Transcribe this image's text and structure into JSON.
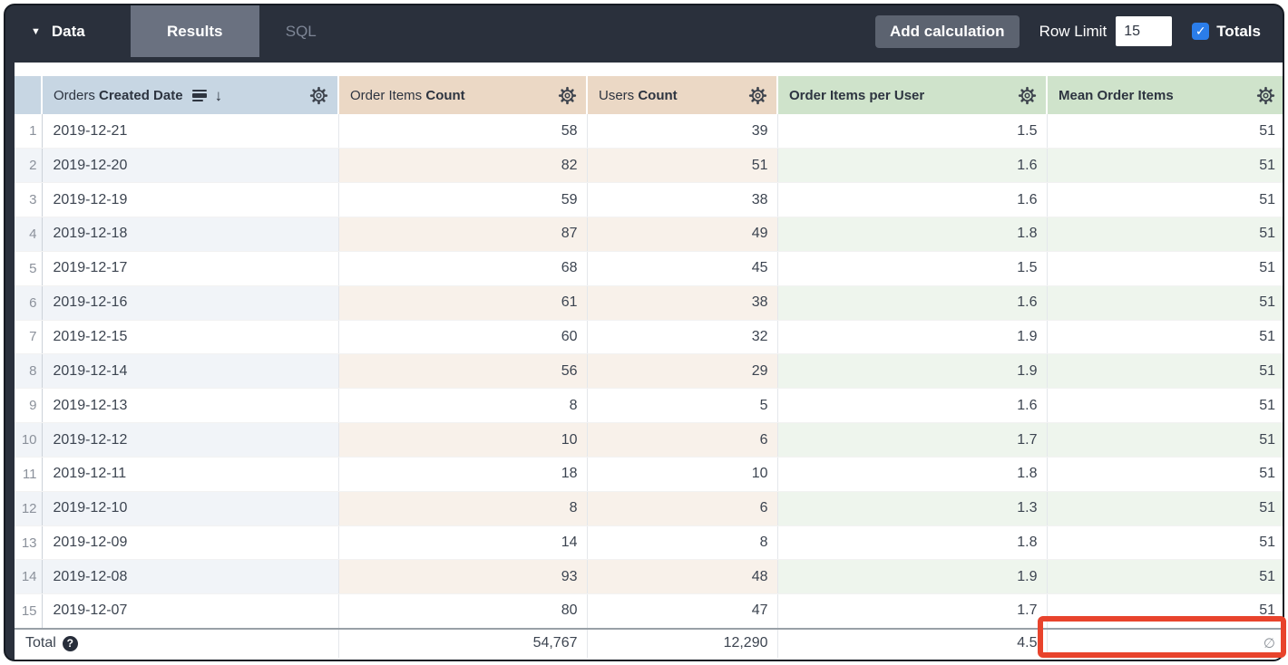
{
  "toolbar": {
    "data_label": "Data",
    "tabs": [
      {
        "label": "Results",
        "active": true
      },
      {
        "label": "SQL",
        "active": false
      }
    ],
    "add_calculation_label": "Add calculation",
    "row_limit_label": "Row Limit",
    "row_limit_value": "15",
    "totals_label": "Totals",
    "totals_checked": true
  },
  "icons": {
    "caret_down": "▼",
    "sort_descending": "↓",
    "checkmark": "✓",
    "help": "?"
  },
  "table": {
    "columns": [
      {
        "key": "orders_created_date",
        "label_regular": "Orders",
        "label_bold": "Created Date",
        "type": "dimension",
        "sorted": "descending"
      },
      {
        "key": "order_items_count",
        "label_regular": "Order Items",
        "label_bold": "Count",
        "type": "measure"
      },
      {
        "key": "users_count",
        "label_regular": "Users",
        "label_bold": "Count",
        "type": "measure"
      },
      {
        "key": "order_items_per_user",
        "label_regular": "",
        "label_bold": "Order Items per User",
        "type": "calculation"
      },
      {
        "key": "mean_order_items",
        "label_regular": "",
        "label_bold": "Mean Order Items",
        "type": "calculation"
      }
    ],
    "rows": [
      {
        "n": "1",
        "date": "2019-12-21",
        "order_items_count": "58",
        "users_count": "39",
        "per_user": "1.5",
        "mean": "51"
      },
      {
        "n": "2",
        "date": "2019-12-20",
        "order_items_count": "82",
        "users_count": "51",
        "per_user": "1.6",
        "mean": "51"
      },
      {
        "n": "3",
        "date": "2019-12-19",
        "order_items_count": "59",
        "users_count": "38",
        "per_user": "1.6",
        "mean": "51"
      },
      {
        "n": "4",
        "date": "2019-12-18",
        "order_items_count": "87",
        "users_count": "49",
        "per_user": "1.8",
        "mean": "51"
      },
      {
        "n": "5",
        "date": "2019-12-17",
        "order_items_count": "68",
        "users_count": "45",
        "per_user": "1.5",
        "mean": "51"
      },
      {
        "n": "6",
        "date": "2019-12-16",
        "order_items_count": "61",
        "users_count": "38",
        "per_user": "1.6",
        "mean": "51"
      },
      {
        "n": "7",
        "date": "2019-12-15",
        "order_items_count": "60",
        "users_count": "32",
        "per_user": "1.9",
        "mean": "51"
      },
      {
        "n": "8",
        "date": "2019-12-14",
        "order_items_count": "56",
        "users_count": "29",
        "per_user": "1.9",
        "mean": "51"
      },
      {
        "n": "9",
        "date": "2019-12-13",
        "order_items_count": "8",
        "users_count": "5",
        "per_user": "1.6",
        "mean": "51"
      },
      {
        "n": "10",
        "date": "2019-12-12",
        "order_items_count": "10",
        "users_count": "6",
        "per_user": "1.7",
        "mean": "51"
      },
      {
        "n": "11",
        "date": "2019-12-11",
        "order_items_count": "18",
        "users_count": "10",
        "per_user": "1.8",
        "mean": "51"
      },
      {
        "n": "12",
        "date": "2019-12-10",
        "order_items_count": "8",
        "users_count": "6",
        "per_user": "1.3",
        "mean": "51"
      },
      {
        "n": "13",
        "date": "2019-12-09",
        "order_items_count": "14",
        "users_count": "8",
        "per_user": "1.8",
        "mean": "51"
      },
      {
        "n": "14",
        "date": "2019-12-08",
        "order_items_count": "93",
        "users_count": "48",
        "per_user": "1.9",
        "mean": "51"
      },
      {
        "n": "15",
        "date": "2019-12-07",
        "order_items_count": "80",
        "users_count": "47",
        "per_user": "1.7",
        "mean": "51"
      }
    ],
    "total": {
      "label": "Total",
      "order_items_count": "54,767",
      "users_count": "12,290",
      "per_user": "4.5",
      "mean": "∅"
    }
  },
  "annotations": {
    "highlight": "red box around total of Mean Order Items column"
  },
  "colors": {
    "frame_dark": "#2a303c",
    "tab_active_bg": "#6a7180",
    "button_bg": "#5c6370",
    "checkbox_blue": "#2b7de9",
    "header_dimension": "#c7d6e3",
    "header_measure": "#ebd8c5",
    "header_calculation": "#cfe3cb",
    "stripe_dimension": "#f1f4f8",
    "stripe_measure": "#f8f1ea",
    "stripe_calculation": "#eef5ed",
    "highlight_red": "#e8432c"
  }
}
